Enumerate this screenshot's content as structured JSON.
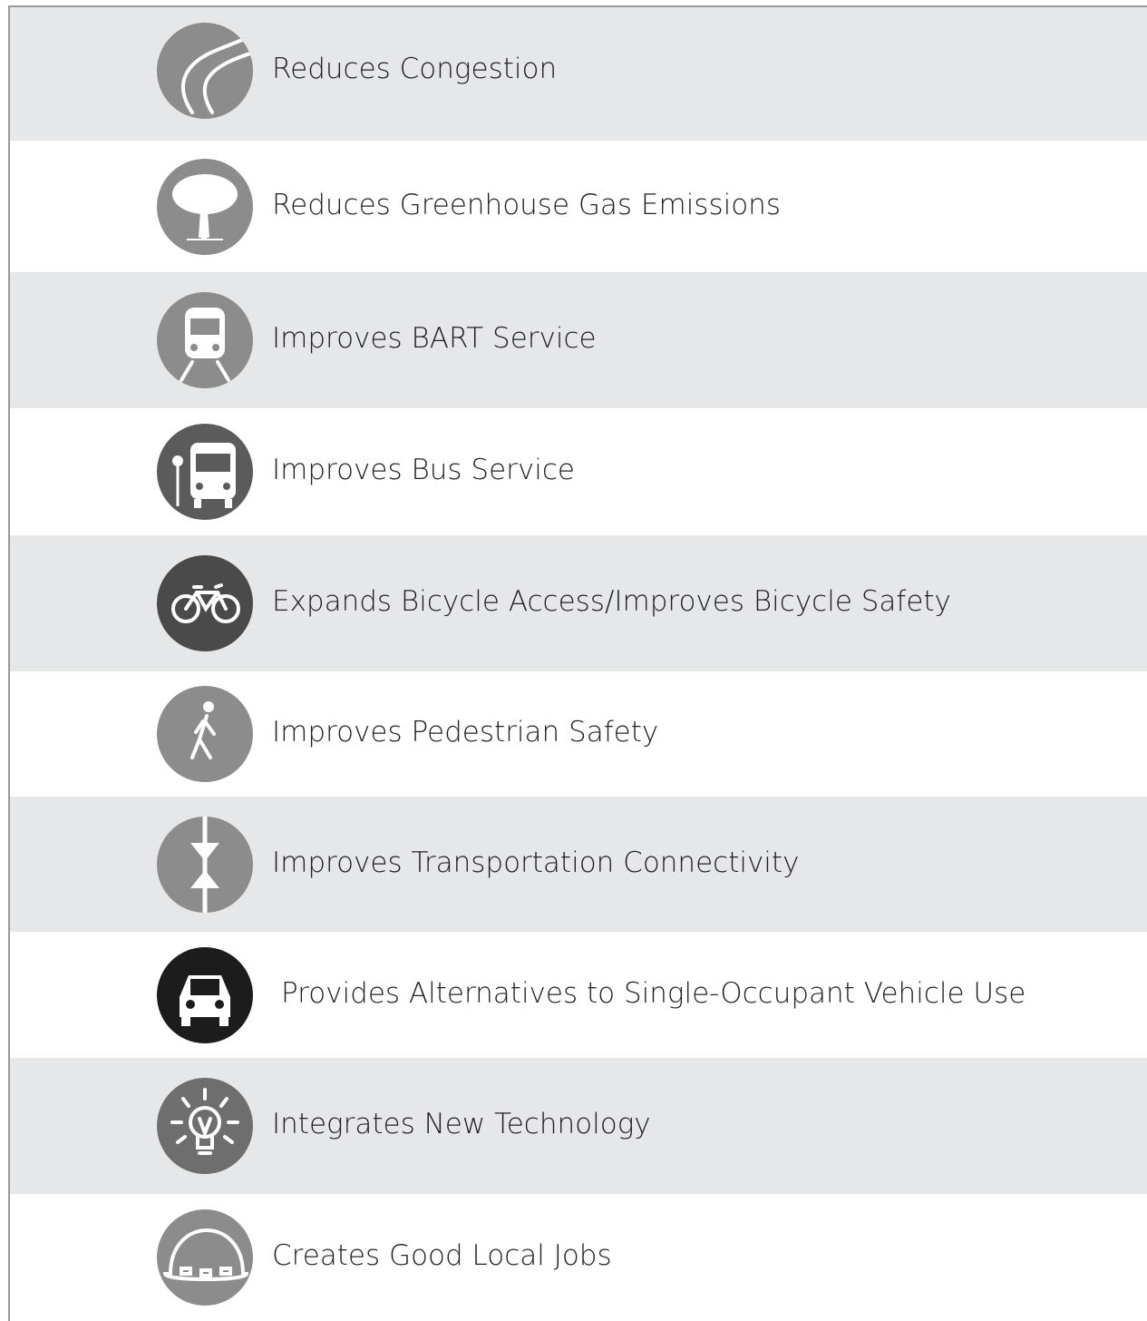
{
  "items": [
    {
      "label": "Reduces Congestion"
    },
    {
      "label": "Reduces Greenhouse Gas Emissions"
    },
    {
      "label": "Improves BART Service"
    },
    {
      "label": "Improves Bus Service"
    },
    {
      "label": "Expands Bicycle Access/Improves Bicycle Safety"
    },
    {
      "label": "Improves Pedestrian Safety"
    },
    {
      "label": "Improves Transportation Connectivity"
    },
    {
      "label": "Provides Alternatives to Single-Occupant Vehicle Use"
    },
    {
      "label": "Integrates New Technology"
    },
    {
      "label": "Creates Good Local Jobs"
    }
  ]
}
